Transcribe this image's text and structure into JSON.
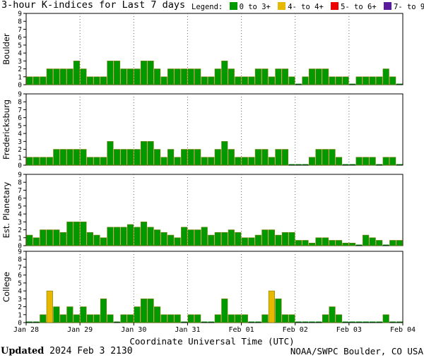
{
  "header": {
    "title": "3-hour K-indices for Last 7 days",
    "legend_label": "Legend:",
    "legend": [
      {
        "label": "0 to 3+",
        "color": "#009900"
      },
      {
        "label": "4- to 4+",
        "color": "#e6b800"
      },
      {
        "label": "5- to 6+",
        "color": "#ee0000"
      },
      {
        "label": "7- to 9",
        "color": "#5a1a9e"
      }
    ]
  },
  "footer": {
    "updated_label": "Updated",
    "updated_value": "2024 Feb  3 2130",
    "source": "NOAA/SWPC Boulder, CO USA"
  },
  "chart_data": {
    "type": "bar",
    "xlabel": "Coordinate Universal Time (UTC)",
    "x_tick_labels": [
      "Jan 28",
      "Jan 29",
      "Jan 30",
      "Jan 31",
      "Feb 01",
      "Feb 02",
      "Feb 03",
      "Feb 04"
    ],
    "interval": "3-hour",
    "ylim": [
      0,
      9
    ],
    "y_ticks": [
      0,
      1,
      2,
      3,
      4,
      5,
      6,
      7,
      8,
      9
    ],
    "color_thresholds": {
      "green_below": 4,
      "yellow_below": 5,
      "red_below": 7
    },
    "grid": "dotted vertical at day boundaries",
    "panels": [
      {
        "name": "Boulder",
        "values": [
          1,
          1,
          1,
          2,
          2,
          2,
          2,
          3,
          2,
          1,
          1,
          1,
          3,
          3,
          2,
          2,
          2,
          3,
          3,
          2,
          1,
          2,
          2,
          2,
          2,
          2,
          1,
          1,
          2,
          3,
          2,
          1,
          1,
          1,
          2,
          2,
          1,
          2,
          2,
          1,
          0,
          1,
          2,
          2,
          2,
          1,
          1,
          1,
          0,
          1,
          1,
          1,
          1,
          2,
          1,
          0
        ]
      },
      {
        "name": "Fredericksburg",
        "values": [
          1,
          1,
          1,
          1,
          2,
          2,
          2,
          2,
          2,
          1,
          1,
          1,
          3,
          2,
          2,
          2,
          2,
          3,
          3,
          2,
          1,
          2,
          1,
          2,
          2,
          2,
          1,
          1,
          2,
          3,
          2,
          1,
          1,
          1,
          2,
          2,
          1,
          2,
          2,
          0,
          0,
          0,
          1,
          2,
          2,
          2,
          1,
          0,
          0,
          1,
          1,
          1,
          0,
          1,
          1,
          0
        ]
      },
      {
        "name": "Est. Planetary",
        "values": [
          1.33,
          1,
          2,
          2,
          2,
          1.67,
          3,
          3,
          3,
          1.67,
          1.33,
          1,
          2.33,
          2.33,
          2.33,
          2.67,
          2.33,
          3,
          2.33,
          2,
          1.67,
          1.33,
          1,
          2.33,
          2,
          2,
          2.33,
          1.33,
          1.67,
          1.67,
          2,
          1.67,
          1,
          1,
          1.33,
          2,
          2,
          1.33,
          1.67,
          1.67,
          0.67,
          0.67,
          0.33,
          1,
          1,
          0.67,
          0.67,
          0.33,
          0.33,
          0,
          1.33,
          1,
          0.67,
          0,
          0.67,
          0.67
        ]
      },
      {
        "name": "College",
        "values": [
          0,
          0,
          1,
          4,
          2,
          1,
          2,
          1,
          2,
          1,
          1,
          3,
          1,
          0,
          1,
          1,
          2,
          3,
          3,
          2,
          1,
          1,
          1,
          0,
          1,
          1,
          0,
          0,
          1,
          3,
          1,
          1,
          1,
          0,
          0,
          1,
          4,
          3,
          1,
          1,
          0,
          0,
          0,
          0,
          1,
          2,
          1,
          0,
          0,
          0,
          0,
          0,
          0,
          1,
          0,
          0
        ]
      }
    ]
  }
}
